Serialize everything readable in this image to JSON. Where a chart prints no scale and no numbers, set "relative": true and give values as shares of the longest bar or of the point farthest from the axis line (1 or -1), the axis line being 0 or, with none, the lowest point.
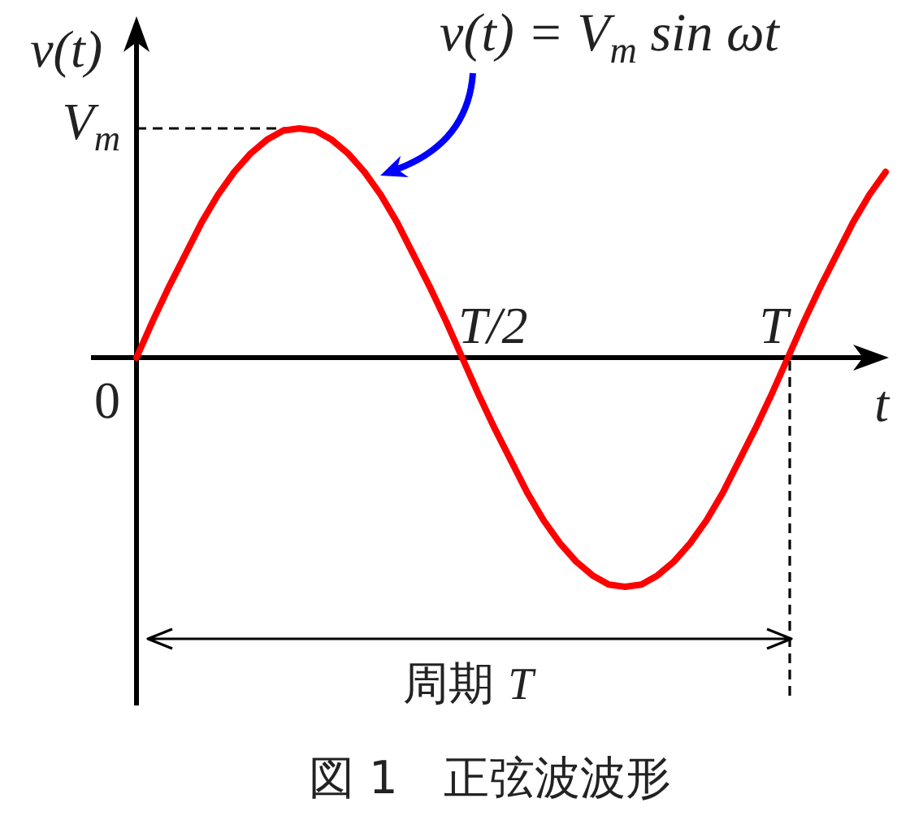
{
  "chart_data": {
    "type": "line",
    "relative": true,
    "xlabel": "t",
    "ylabel": "v(t)",
    "categories": [
      null,
      null,
      null,
      null,
      null,
      null,
      null,
      null,
      null,
      null,
      null,
      null,
      null,
      null,
      null,
      null,
      null,
      null,
      null,
      null,
      null,
      null,
      null,
      null,
      null,
      null,
      null,
      null,
      null,
      null,
      null,
      null,
      null,
      null,
      null,
      null,
      null,
      null,
      null,
      null,
      null,
      null,
      null,
      null,
      null,
      null,
      null
    ],
    "values": [
      0,
      0.16,
      0.31,
      0.45,
      0.59,
      0.71,
      0.81,
      0.89,
      0.95,
      0.99,
      1,
      0.99,
      0.95,
      0.89,
      0.81,
      0.71,
      0.59,
      0.45,
      0.31,
      0.16,
      0,
      -0.16,
      -0.31,
      -0.45,
      -0.59,
      -0.71,
      -0.81,
      -0.89,
      -0.95,
      -0.99,
      -1,
      -0.99,
      -0.95,
      -0.89,
      -0.81,
      -0.71,
      -0.59,
      -0.45,
      -0.31,
      -0.16,
      0,
      0.16,
      0.31,
      0.45,
      0.59,
      0.71,
      0.81
    ],
    "color": "#ff0000",
    "ref_lines": [
      {
        "axis": "y",
        "value": 1,
        "label": "V$_{m}$",
        "line_style": "dashed"
      }
    ],
    "annotations": [
      "v(t) = V$_{m}$ sin ωt",
      "0",
      "T/2",
      "T",
      "周期 T",
      "図 1　正弦波波形"
    ]
  }
}
